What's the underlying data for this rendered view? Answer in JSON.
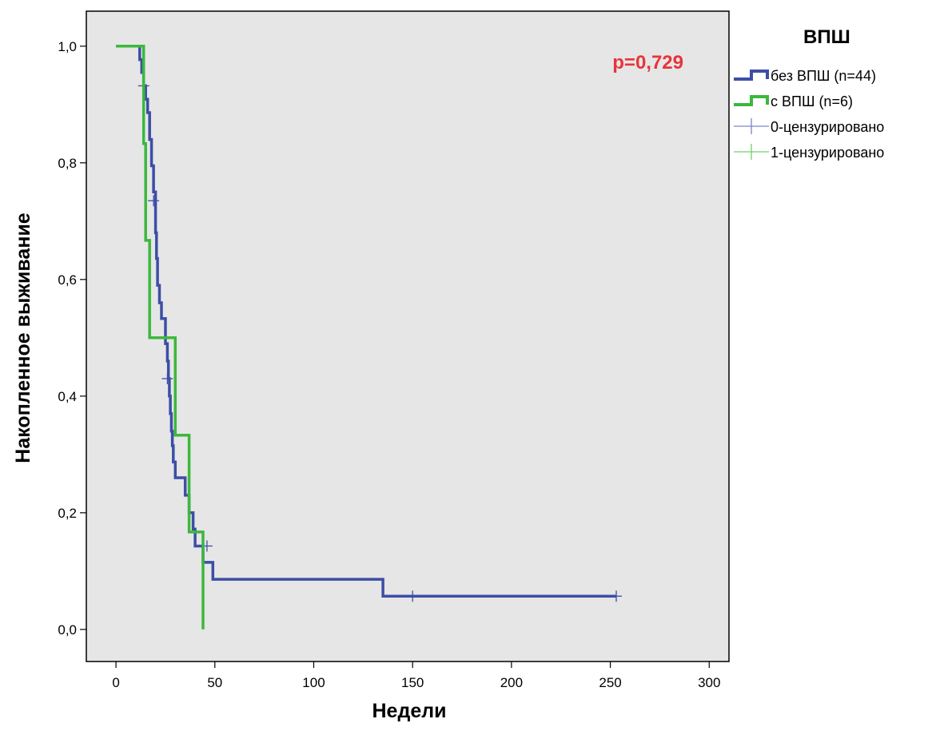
{
  "chart_data": {
    "type": "line",
    "subtype": "kaplan-meier",
    "title": "",
    "xlabel": "Недели",
    "ylabel": "Накопленное выживание",
    "xlim": [
      -15,
      310
    ],
    "ylim": [
      -0.055,
      1.06
    ],
    "x_ticks": [
      0,
      50,
      100,
      150,
      200,
      300
    ],
    "x_tick_labels": [
      "0",
      "50",
      "100",
      "150",
      "200",
      "300"
    ],
    "x_ticks_all": [
      0,
      50,
      100,
      150,
      200,
      250,
      300
    ],
    "x_tick_labels_all": [
      "0",
      "50",
      "100",
      "150",
      "200",
      "250",
      "300"
    ],
    "y_ticks": [
      0.0,
      0.2,
      0.4,
      0.6,
      0.8,
      1.0
    ],
    "y_tick_labels": [
      "0,0",
      "0,2",
      "0,4",
      "0,6",
      "0,8",
      "1,0"
    ],
    "grid": false,
    "background": "#e6e6e6",
    "legend": {
      "title": "ВПШ",
      "position": "right",
      "entries": [
        {
          "label": "без ВПШ (n=44)",
          "kind": "line",
          "color": "#3c4ea6"
        },
        {
          "label": "с ВПШ (n=6)",
          "kind": "line",
          "color": "#3cb83c"
        },
        {
          "label": "0-цензурировано",
          "kind": "censor",
          "color": "#7a86c8"
        },
        {
          "label": "1-цензурировано",
          "kind": "censor",
          "color": "#6cd06c"
        }
      ]
    },
    "annotation": {
      "text": "p=0,729",
      "color": "#e8343a"
    },
    "series": [
      {
        "name": "без ВПШ (n=44)",
        "color": "#3c4ea6",
        "step_points": [
          [
            0,
            1.0
          ],
          [
            12,
            1.0
          ],
          [
            12,
            0.977
          ],
          [
            13,
            0.977
          ],
          [
            13,
            0.955
          ],
          [
            14,
            0.955
          ],
          [
            14,
            0.932
          ],
          [
            15,
            0.932
          ],
          [
            15,
            0.909
          ],
          [
            16,
            0.909
          ],
          [
            16,
            0.886
          ],
          [
            17,
            0.886
          ],
          [
            17,
            0.84
          ],
          [
            18,
            0.84
          ],
          [
            18,
            0.795
          ],
          [
            19,
            0.795
          ],
          [
            19,
            0.75
          ],
          [
            20,
            0.75
          ],
          [
            20,
            0.68
          ],
          [
            20.5,
            0.68
          ],
          [
            20.5,
            0.636
          ],
          [
            21,
            0.636
          ],
          [
            21,
            0.59
          ],
          [
            22,
            0.59
          ],
          [
            22,
            0.56
          ],
          [
            23,
            0.56
          ],
          [
            23,
            0.533
          ],
          [
            25,
            0.533
          ],
          [
            25,
            0.49
          ],
          [
            26,
            0.49
          ],
          [
            26,
            0.46
          ],
          [
            26.5,
            0.46
          ],
          [
            26.5,
            0.43
          ],
          [
            27,
            0.43
          ],
          [
            27,
            0.4
          ],
          [
            27.5,
            0.4
          ],
          [
            27.5,
            0.37
          ],
          [
            28,
            0.37
          ],
          [
            28,
            0.34
          ],
          [
            28.5,
            0.34
          ],
          [
            28.5,
            0.315
          ],
          [
            29,
            0.315
          ],
          [
            29,
            0.287
          ],
          [
            30,
            0.287
          ],
          [
            30,
            0.26
          ],
          [
            35,
            0.26
          ],
          [
            35,
            0.23
          ],
          [
            37,
            0.23
          ],
          [
            37,
            0.2
          ],
          [
            39,
            0.2
          ],
          [
            39,
            0.172
          ],
          [
            40,
            0.172
          ],
          [
            40,
            0.143
          ],
          [
            44,
            0.143
          ],
          [
            44,
            0.115
          ],
          [
            49,
            0.115
          ],
          [
            49,
            0.086
          ],
          [
            135,
            0.086
          ],
          [
            135,
            0.057
          ],
          [
            253,
            0.057
          ]
        ],
        "censored": [
          [
            14,
            0.932
          ],
          [
            19,
            0.735
          ],
          [
            26,
            0.43
          ],
          [
            46,
            0.143
          ],
          [
            150,
            0.057
          ],
          [
            253,
            0.057
          ]
        ]
      },
      {
        "name": "с ВПШ (n=6)",
        "color": "#3cb83c",
        "step_points": [
          [
            0,
            1.0
          ],
          [
            14,
            1.0
          ],
          [
            14,
            0.833
          ],
          [
            15,
            0.833
          ],
          [
            15,
            0.667
          ],
          [
            17,
            0.667
          ],
          [
            17,
            0.5
          ],
          [
            30,
            0.5
          ],
          [
            30,
            0.333
          ],
          [
            37,
            0.333
          ],
          [
            37,
            0.167
          ],
          [
            44,
            0.167
          ],
          [
            44,
            0.0
          ]
        ],
        "censored": []
      }
    ]
  }
}
